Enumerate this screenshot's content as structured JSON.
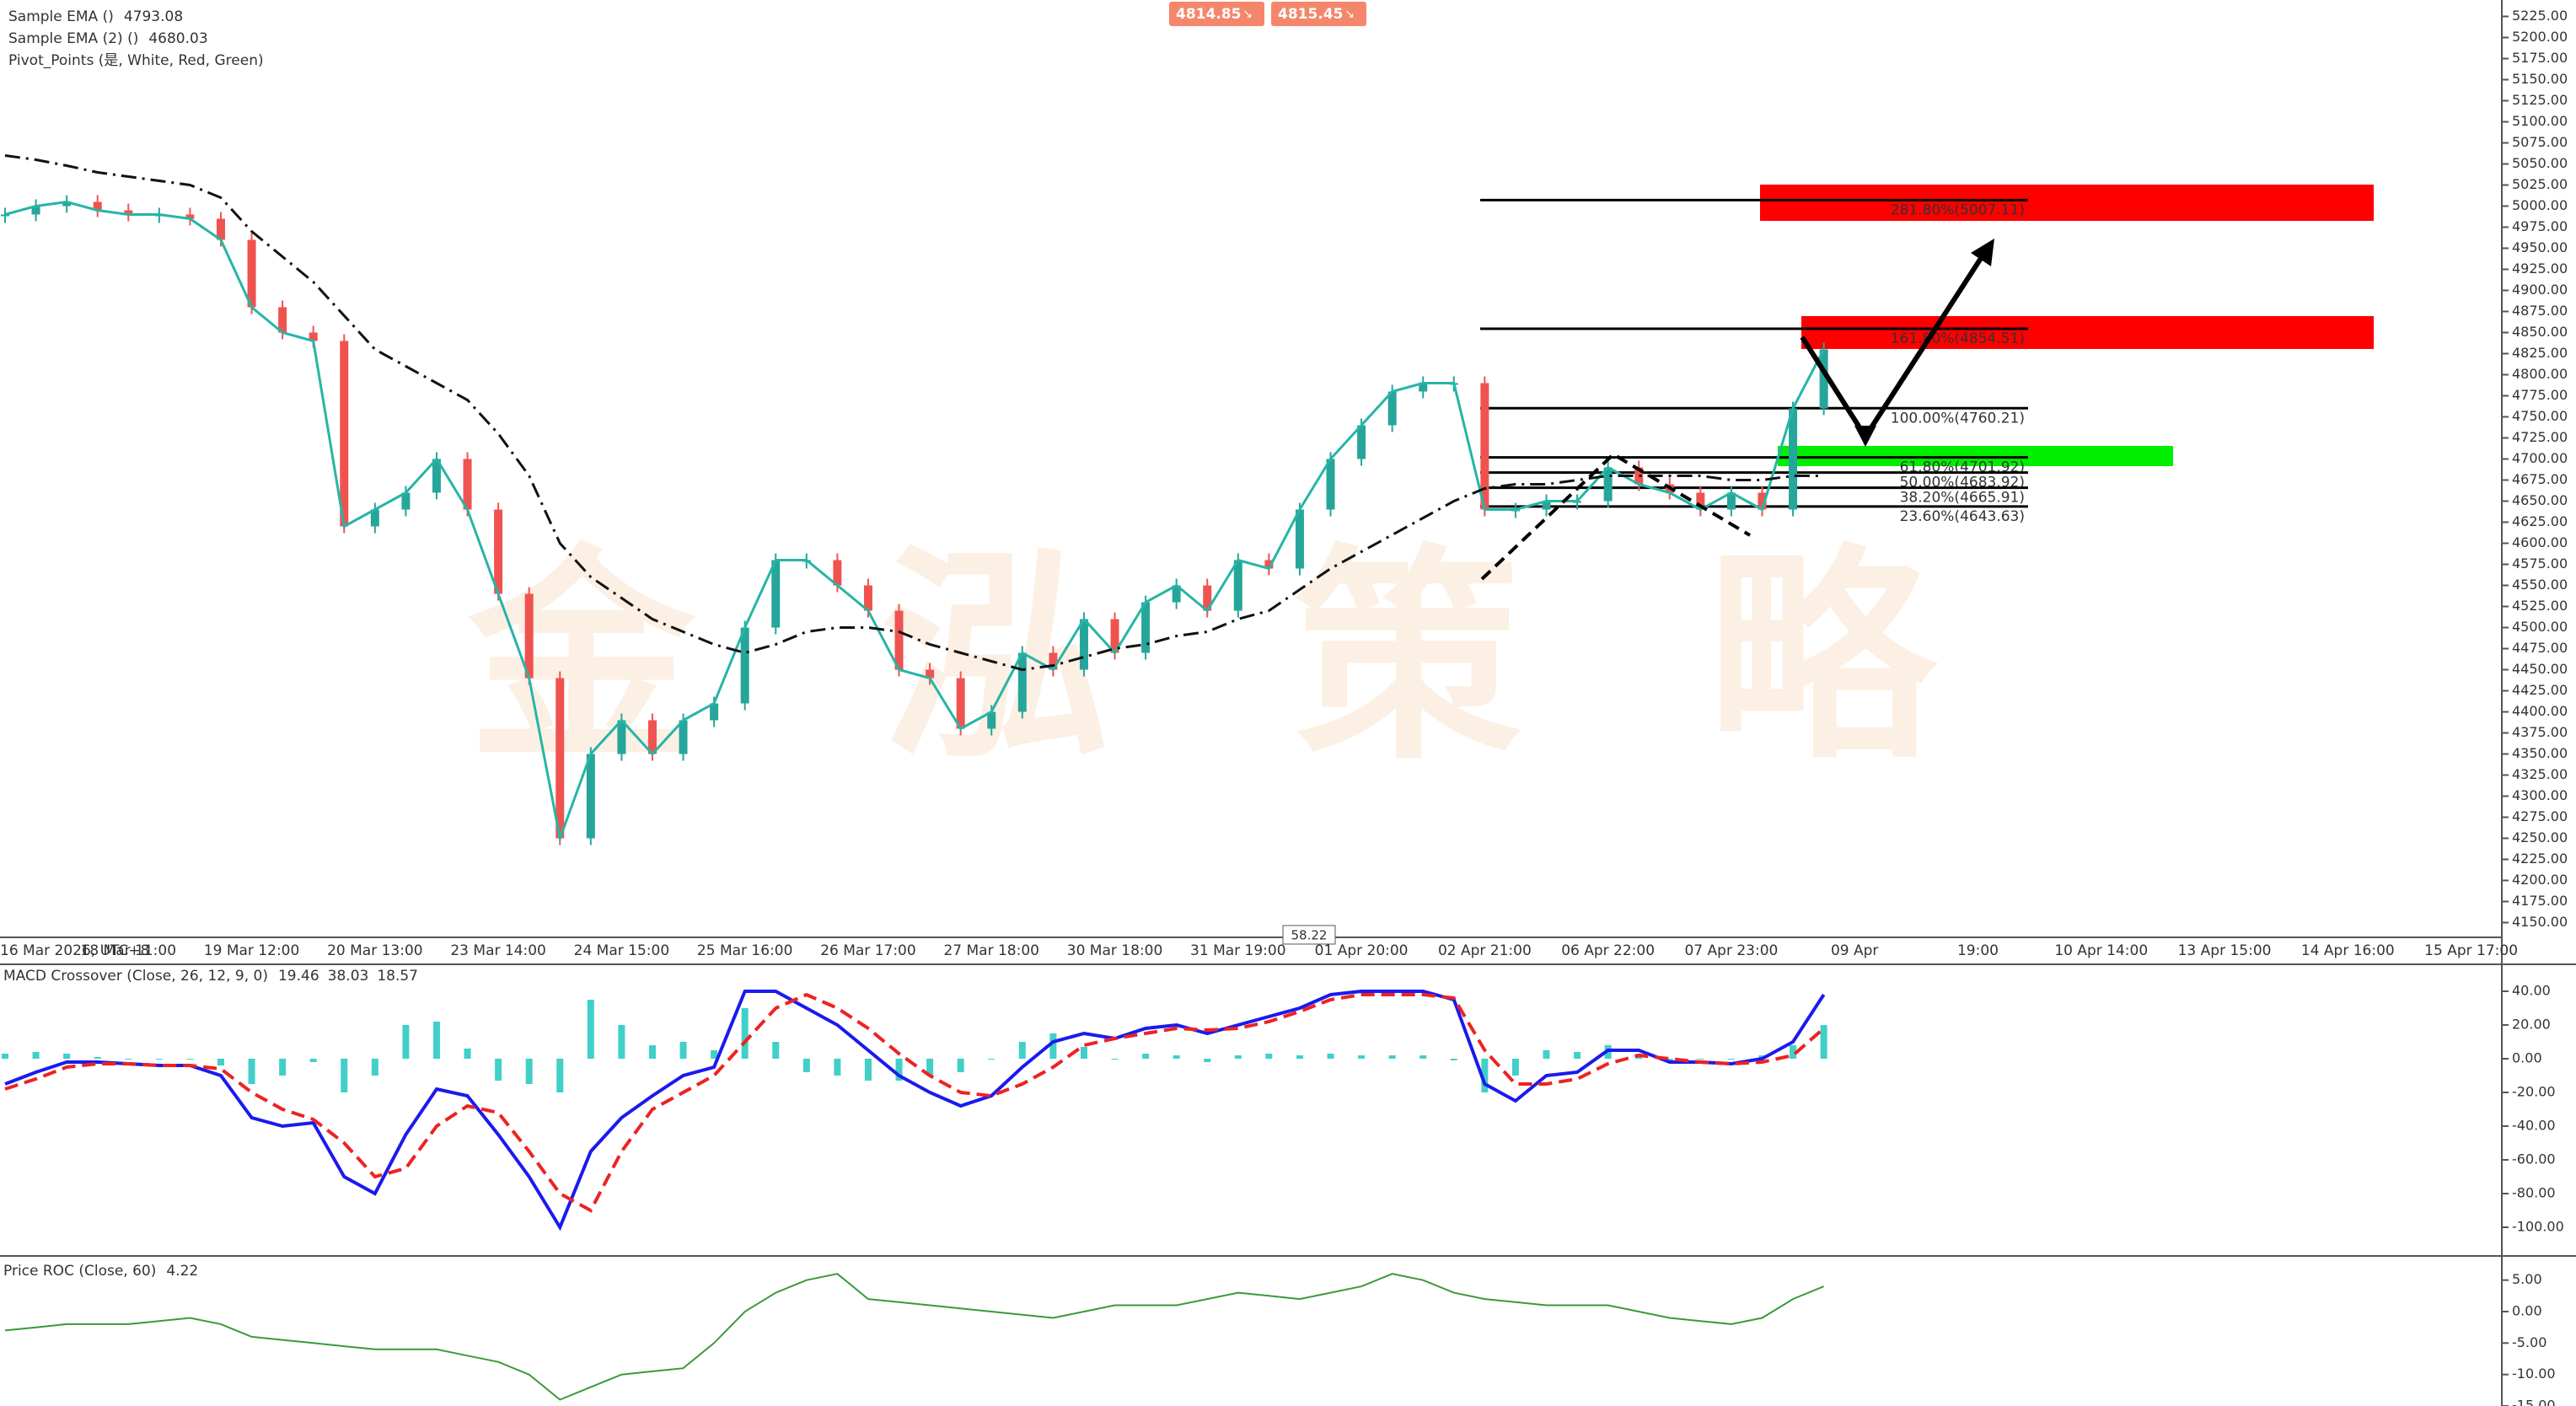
{
  "chart_data": [
    {
      "type": "candlestick",
      "categories": [
        "16 Mar 2026, UTC+8",
        null,
        null,
        null,
        "18 Mar 11:00",
        null,
        null,
        null,
        "19 Mar 12:00",
        null,
        null,
        null,
        "20 Mar 13:00",
        null,
        null,
        null,
        "23 Mar 14:00",
        null,
        null,
        null,
        "24 Mar 15:00",
        null,
        null,
        null,
        "25 Mar 16:00",
        null,
        null,
        null,
        "26 Mar 17:00",
        null,
        null,
        null,
        "27 Mar 18:00",
        null,
        null,
        null,
        "30 Mar 18:00",
        null,
        null,
        null,
        "31 Mar 19:00",
        null,
        null,
        null,
        "01 Apr 20:00",
        null,
        null,
        null,
        "02 Apr 21:00",
        null,
        null,
        null,
        "06 Apr 22:00",
        null,
        null,
        null,
        "07 Apr 23:00",
        null,
        null,
        null,
        "09 Apr",
        null,
        null,
        null,
        "19:00",
        null,
        null,
        null,
        "10 Apr 14:00",
        null,
        null,
        null,
        "13 Apr 15:00",
        null,
        null,
        null,
        "14 Apr 16:00",
        null,
        null,
        null,
        "15 Apr 17:00"
      ],
      "values": [
        4990,
        5000,
        5005,
        4995,
        4990,
        4990,
        4985,
        4960,
        4880,
        4850,
        4840,
        4620,
        4640,
        4660,
        4700,
        4640,
        4540,
        4440,
        4250,
        4350,
        4390,
        4350,
        4390,
        4410,
        4500,
        4580,
        4580,
        4550,
        4520,
        4450,
        4440,
        4380,
        4400,
        4470,
        4450,
        4510,
        4470,
        4530,
        4550,
        4520,
        4580,
        4570,
        4640,
        4700,
        4740,
        4780,
        4790,
        4790,
        4640,
        4640,
        4650,
        4650,
        4690,
        4670,
        4660,
        4640,
        4660,
        4640,
        4760,
        4830,
        null,
        null,
        null,
        null,
        null,
        null,
        null,
        null,
        null,
        null,
        null,
        null,
        null,
        null,
        null,
        null,
        null,
        null,
        null,
        null,
        null
      ],
      "up_color": "#26a69a",
      "down_color": "#ef5350",
      "series": [
        {
          "name": "Sample EMA ()",
          "color": "#26b5a6",
          "last_value": 4793.08
        },
        {
          "name": "Sample EMA (2) ()",
          "color": "#111111",
          "last_value": 4680.03,
          "style": "dashdot",
          "values": [
            5060,
            5055,
            5048,
            5040,
            5035,
            5030,
            5025,
            5010,
            4970,
            4940,
            4910,
            4870,
            4830,
            4810,
            4790,
            4770,
            4730,
            4680,
            4600,
            4560,
            4535,
            4510,
            4495,
            4480,
            4470,
            4480,
            4495,
            4500,
            4500,
            4495,
            4480,
            4470,
            4460,
            4450,
            4455,
            4465,
            4475,
            4480,
            4490,
            4495,
            4510,
            4520,
            4545,
            4570,
            4590,
            4610,
            4630,
            4650,
            4665,
            4670,
            4670,
            4675,
            4680,
            4680,
            4680,
            4680,
            4675,
            4675,
            4680,
            4680,
            null,
            null,
            null,
            null,
            null,
            null,
            null,
            null,
            null,
            null,
            null,
            null,
            null,
            null,
            null,
            null,
            null,
            null,
            null,
            null,
            null
          ]
        },
        {
          "name": "Pivot_Points (是, White, Red, Green)",
          "color": "#aaaaaa"
        }
      ],
      "ylim": [
        4134.5,
        5244.5
      ],
      "yticks": [
        {
          "value": 5225,
          "label": "5225.00"
        },
        {
          "value": 5200,
          "label": "5200.00"
        },
        {
          "value": 5175,
          "label": "5175.00"
        },
        {
          "value": 5150,
          "label": "5150.00"
        },
        {
          "value": 5125,
          "label": "5125.00"
        },
        {
          "value": 5100,
          "label": "5100.00"
        },
        {
          "value": 5075,
          "label": "5075.00"
        },
        {
          "value": 5050,
          "label": "5050.00"
        },
        {
          "value": 5025,
          "label": "5025.00"
        },
        {
          "value": 5000,
          "label": "5000.00"
        },
        {
          "value": 4975,
          "label": "4975.00"
        },
        {
          "value": 4950,
          "label": "4950.00"
        },
        {
          "value": 4925,
          "label": "4925.00"
        },
        {
          "value": 4900,
          "label": "4900.00"
        },
        {
          "value": 4875,
          "label": "4875.00"
        },
        {
          "value": 4850,
          "label": "4850.00"
        },
        {
          "value": 4825,
          "label": "4825.00"
        },
        {
          "value": 4800,
          "label": "4800.00"
        },
        {
          "value": 4775,
          "label": "4775.00"
        },
        {
          "value": 4750,
          "label": "4750.00"
        },
        {
          "value": 4725,
          "label": "4725.00"
        },
        {
          "value": 4700,
          "label": "4700.00"
        },
        {
          "value": 4675,
          "label": "4675.00"
        },
        {
          "value": 4650,
          "label": "4650.00"
        },
        {
          "value": 4625,
          "label": "4625.00"
        },
        {
          "value": 4600,
          "label": "4600.00"
        },
        {
          "value": 4575,
          "label": "4575.00"
        },
        {
          "value": 4550,
          "label": "4550.00"
        },
        {
          "value": 4525,
          "label": "4525.00"
        },
        {
          "value": 4500,
          "label": "4500.00"
        },
        {
          "value": 4475,
          "label": "4475.00"
        },
        {
          "value": 4450,
          "label": "4450.00"
        },
        {
          "value": 4425,
          "label": "4425.00"
        },
        {
          "value": 4400,
          "label": "4400.00"
        },
        {
          "value": 4375,
          "label": "4375.00"
        },
        {
          "value": 4350,
          "label": "4350.00"
        },
        {
          "value": 4325,
          "label": "4325.00"
        },
        {
          "value": 4300,
          "label": "4300.00"
        },
        {
          "value": 4275,
          "label": "4275.00"
        },
        {
          "value": 4250,
          "label": "4250.00"
        },
        {
          "value": 4225,
          "label": "4225.00"
        },
        {
          "value": 4200,
          "label": "4200.00"
        },
        {
          "value": 4175,
          "label": "4175.00"
        },
        {
          "value": 4150,
          "label": "4150.00"
        }
      ],
      "fib_levels": [
        {
          "label": "281.80%(5007.11)",
          "value": 5007.11
        },
        {
          "label": "161.80%(4854.51)",
          "value": 4854.51
        },
        {
          "label": "100.00%(4760.21)",
          "value": 4760.21
        },
        {
          "label": "61.80%(4701.92)",
          "value": 4701.92
        },
        {
          "label": "50.00%(4683.92)",
          "value": 4683.92
        },
        {
          "label": "38.20%(4665.91)",
          "value": 4665.91
        },
        {
          "label": "23.60%(4643.63)",
          "value": 4643.63
        }
      ],
      "zones": [
        {
          "top": 5025.5,
          "bottom": 4982.5,
          "color": "#ff0000"
        },
        {
          "top": 4869.5,
          "bottom": 4830.5,
          "color": "#ff0000"
        },
        {
          "top": 4715.5,
          "bottom": 4691.5,
          "color": "#00ee00"
        }
      ],
      "quotes": [
        4814.85,
        4815.45
      ],
      "crosshair_value": 58.22,
      "watermark": [
        "金",
        "泓",
        "策",
        "略"
      ]
    },
    {
      "type": "macd",
      "title": "MACD Crossover (Close, 26, 12, 9, 0)",
      "ylim": [
        -116,
        54
      ],
      "yticks": [
        {
          "value": 40,
          "label": "40.00"
        },
        {
          "value": 20,
          "label": "20.00"
        },
        {
          "value": 0,
          "label": "0.00"
        },
        {
          "value": -20,
          "label": "-20.00"
        },
        {
          "value": -40,
          "label": "-40.00"
        },
        {
          "value": -60,
          "label": "-60.00"
        },
        {
          "value": -80,
          "label": "-80.00"
        },
        {
          "value": -100,
          "label": "-100.00"
        }
      ],
      "series": [
        {
          "color": "#40d0c8",
          "last_value": 19.46,
          "style": "histogram",
          "values": [
            3,
            4,
            3,
            1,
            0,
            0,
            0,
            -4,
            -15,
            -10,
            -2,
            -20,
            -10,
            20,
            22,
            6,
            -13,
            -15,
            -20,
            35,
            20,
            8,
            10,
            5,
            30,
            10,
            -8,
            -10,
            -13,
            -13,
            -10,
            -8,
            0,
            10,
            15,
            7,
            0,
            3,
            2,
            -2,
            2,
            3,
            2,
            3,
            2,
            2,
            2,
            -1,
            -20,
            -10,
            5,
            4,
            8,
            3,
            -2,
            0,
            0,
            2,
            8,
            20,
            null,
            null,
            null,
            null,
            null,
            null,
            null,
            null,
            null,
            null,
            null,
            null,
            null,
            null,
            null,
            null,
            null,
            null,
            null,
            null,
            null
          ]
        },
        {
          "color": "#1a1aee",
          "last_value": 38.03,
          "style": "solid",
          "values": [
            -15,
            -8,
            -2,
            -2,
            -3,
            -4,
            -4,
            -10,
            -35,
            -40,
            -38,
            -70,
            -80,
            -45,
            -18,
            -22,
            -45,
            -70,
            -100,
            -55,
            -35,
            -22,
            -10,
            -5,
            40,
            40,
            30,
            20,
            5,
            -10,
            -20,
            -28,
            -22,
            -5,
            10,
            15,
            12,
            18,
            20,
            15,
            20,
            25,
            30,
            38,
            40,
            40,
            40,
            35,
            -15,
            -25,
            -10,
            -8,
            5,
            5,
            -2,
            -2,
            -3,
            0,
            10,
            38,
            null,
            null,
            null,
            null,
            null,
            null,
            null,
            null,
            null,
            null,
            null,
            null,
            null,
            null,
            null,
            null,
            null,
            null,
            null,
            null,
            null
          ]
        },
        {
          "color": "#ee2222",
          "last_value": 18.57,
          "style": "dashed",
          "values": [
            -18,
            -12,
            -5,
            -3,
            -3,
            -4,
            -4,
            -6,
            -20,
            -30,
            -36,
            -50,
            -70,
            -65,
            -40,
            -28,
            -32,
            -55,
            -80,
            -90,
            -55,
            -30,
            -20,
            -10,
            10,
            30,
            38,
            30,
            18,
            3,
            -10,
            -20,
            -22,
            -15,
            -5,
            8,
            12,
            15,
            18,
            17,
            18,
            22,
            28,
            35,
            38,
            38,
            38,
            36,
            5,
            -15,
            -15,
            -12,
            -3,
            2,
            0,
            -2,
            -3,
            -2,
            2,
            18,
            null,
            null,
            null,
            null,
            null,
            null,
            null,
            null,
            null,
            null,
            null,
            null,
            null,
            null,
            null,
            null,
            null,
            null,
            null,
            null,
            null
          ]
        }
      ]
    },
    {
      "type": "line",
      "title": "Price ROC (Close, 60)",
      "color": "#3a9a3a",
      "last_value": 4.22,
      "ylim": [
        -15,
        7.5
      ],
      "yticks": [
        {
          "value": 5,
          "label": "5.00"
        },
        {
          "value": 0,
          "label": "0.00"
        },
        {
          "value": -5,
          "label": "-5.00"
        },
        {
          "value": -10,
          "label": "-10.00"
        },
        {
          "value": -15,
          "label": "-15.00"
        }
      ],
      "values": [
        -3,
        -2.5,
        -2,
        -2,
        -2,
        -1.5,
        -1,
        -2,
        -4,
        -4.5,
        -5,
        -5.5,
        -6,
        -6,
        -6,
        -7,
        -8,
        -10,
        -14,
        -12,
        -10,
        -9.5,
        -9,
        -5,
        0,
        3,
        5,
        6,
        2,
        1.5,
        1,
        0.5,
        0,
        -0.5,
        -1,
        0,
        1,
        1,
        1,
        2,
        3,
        2.5,
        2,
        3,
        4,
        6,
        5,
        3,
        2,
        1.5,
        1,
        1,
        1,
        0,
        -1,
        -1.5,
        -2,
        -1,
        2,
        4,
        null,
        null,
        null,
        null,
        null,
        null,
        null,
        null,
        null,
        null,
        null,
        null,
        null,
        null,
        null,
        null,
        null,
        null,
        null,
        null,
        null
      ]
    }
  ]
}
